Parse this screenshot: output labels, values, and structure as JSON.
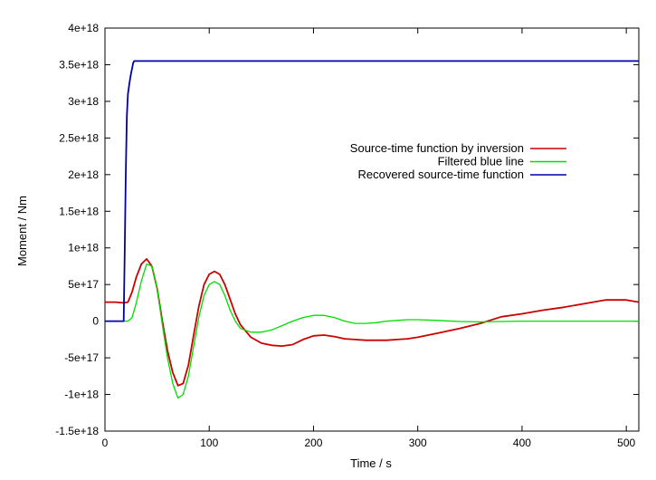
{
  "chart_data": {
    "type": "line",
    "title": "",
    "xlabel": "Time / s",
    "ylabel": "Moment / Nm",
    "xlim": [
      0,
      512
    ],
    "ylim": [
      -1.5e+18,
      4e+18
    ],
    "grid": false,
    "legend_position": "right",
    "x_ticks": [
      {
        "value": 0,
        "label": "0"
      },
      {
        "value": 100,
        "label": "100"
      },
      {
        "value": 200,
        "label": "200"
      },
      {
        "value": 300,
        "label": "300"
      },
      {
        "value": 400,
        "label": "400"
      },
      {
        "value": 500,
        "label": "500"
      }
    ],
    "y_ticks": [
      {
        "value": -1.5e+18,
        "label": "-1.5e+18"
      },
      {
        "value": -1e+18,
        "label": "-1e+18"
      },
      {
        "value": -5e+17,
        "label": "-5e+17"
      },
      {
        "value": 0,
        "label": "0"
      },
      {
        "value": 5e+17,
        "label": "5e+17"
      },
      {
        "value": 1e+18,
        "label": "1e+18"
      },
      {
        "value": 1.5e+18,
        "label": "1.5e+18"
      },
      {
        "value": 2e+18,
        "label": "2e+18"
      },
      {
        "value": 2.5e+18,
        "label": "2.5e+18"
      },
      {
        "value": 3e+18,
        "label": "3e+18"
      },
      {
        "value": 3.5e+18,
        "label": "3.5e+18"
      },
      {
        "value": 4e+18,
        "label": "4e+18"
      }
    ],
    "series": [
      {
        "name": "Source-time function by inversion",
        "color": "#cc0000",
        "x": [
          0,
          10,
          18,
          22,
          26,
          30,
          35,
          40,
          45,
          50,
          55,
          60,
          65,
          70,
          75,
          80,
          85,
          90,
          95,
          100,
          105,
          110,
          115,
          120,
          125,
          130,
          140,
          150,
          160,
          170,
          180,
          190,
          200,
          210,
          220,
          230,
          240,
          250,
          260,
          270,
          280,
          290,
          300,
          320,
          340,
          360,
          380,
          400,
          420,
          440,
          460,
          480,
          500,
          512
        ],
        "y": [
          2.6e+17,
          2.6e+17,
          2.5e+17,
          2.6e+17,
          4e+17,
          6e+17,
          7.8e+17,
          8.5e+17,
          7.5e+17,
          4.5e+17,
          0,
          -4e+17,
          -7e+17,
          -8.8e+17,
          -8.5e+17,
          -6e+17,
          -2e+17,
          2e+17,
          5e+17,
          6.4e+17,
          6.8e+17,
          6.4e+17,
          5e+17,
          3e+17,
          1e+17,
          -5e+16,
          -2.2e+17,
          -3e+17,
          -3.3e+17,
          -3.4e+17,
          -3.2e+17,
          -2.5e+17,
          -2e+17,
          -1.9e+17,
          -2.1e+17,
          -2.4e+17,
          -2.5e+17,
          -2.6e+17,
          -2.6e+17,
          -2.6e+17,
          -2.5e+17,
          -2.4e+17,
          -2.2e+17,
          -1.6e+17,
          -1e+17,
          -3e+16,
          6e+16,
          1e+17,
          1.5e+17,
          1.9e+17,
          2.4e+17,
          2.9e+17,
          2.9e+17,
          2.6e+17
        ]
      },
      {
        "name": "Filtered blue line",
        "color": "#00dd00",
        "x": [
          0,
          10,
          18,
          22,
          26,
          30,
          35,
          40,
          45,
          50,
          55,
          60,
          65,
          70,
          75,
          80,
          85,
          90,
          95,
          100,
          105,
          110,
          115,
          120,
          125,
          130,
          140,
          150,
          160,
          170,
          180,
          190,
          200,
          210,
          220,
          230,
          240,
          250,
          260,
          270,
          280,
          290,
          300,
          320,
          340,
          360,
          380,
          400,
          420,
          440,
          460,
          480,
          500,
          512
        ],
        "y": [
          0,
          0,
          0,
          0,
          5e+16,
          2.5e+17,
          5.5e+17,
          7.8e+17,
          7.5e+17,
          4.5e+17,
          -5e+16,
          -5e+17,
          -8.5e+17,
          -1.05e+18,
          -1e+18,
          -7.5e+17,
          -3.5e+17,
          5e+16,
          3.5e+17,
          5e+17,
          5.4e+17,
          5e+17,
          3.5e+17,
          1.5e+17,
          0,
          -1e+17,
          -1.5e+17,
          -1.5e+17,
          -1.2e+17,
          -6e+16,
          0,
          5e+16,
          8e+16,
          8e+16,
          5e+16,
          0,
          -3e+16,
          -3e+16,
          -2e+16,
          0,
          1e+16,
          2e+16,
          2e+16,
          1e+16,
          -5000000000000000.0,
          -1e+16,
          -5000000000000000.0,
          0,
          0,
          0,
          0,
          0,
          0,
          0
        ]
      },
      {
        "name": "Recovered source-time function",
        "color": "#0000aa",
        "x": [
          0,
          18,
          19,
          20,
          21,
          22,
          23,
          24,
          25,
          26,
          27,
          28,
          30,
          100,
          200,
          300,
          400,
          512
        ],
        "y": [
          0,
          0,
          1e+18,
          2e+18,
          2.8e+18,
          3.1e+18,
          3.2e+18,
          3.3e+18,
          3.38e+18,
          3.45e+18,
          3.52e+18,
          3.55e+18,
          3.55e+18,
          3.55e+18,
          3.55e+18,
          3.55e+18,
          3.55e+18,
          3.55e+18
        ]
      }
    ]
  }
}
